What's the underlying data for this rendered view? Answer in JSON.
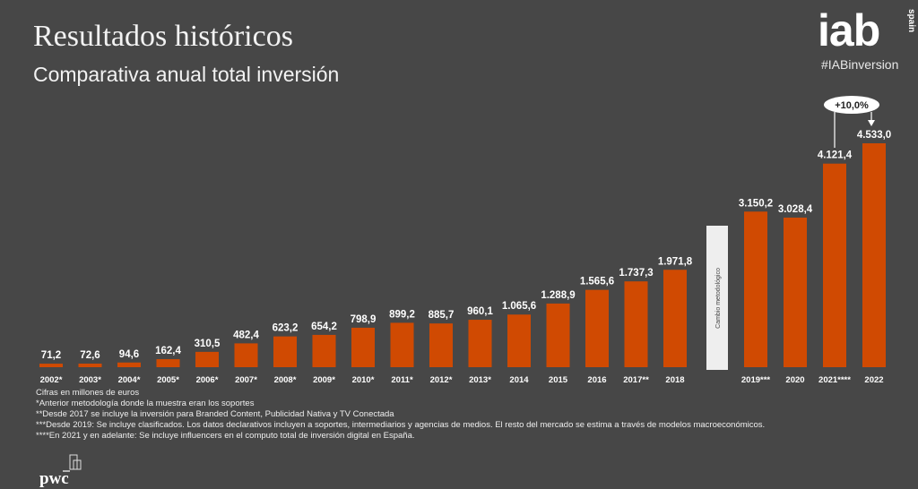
{
  "header": {
    "title": "Resultados históricos",
    "subtitle": "Comparativa anual total inversión",
    "logo": "iab",
    "logo_sub": "spain",
    "hashtag": "#IABinversion"
  },
  "colors": {
    "background": "#474747",
    "bar": "#d04a02",
    "separator": "#eeeeee"
  },
  "chart_data": {
    "type": "bar",
    "title": "",
    "xlabel": "",
    "ylabel": "",
    "categories": [
      "2002*",
      "2003*",
      "2004*",
      "2005*",
      "2006*",
      "2007*",
      "2008*",
      "2009*",
      "2010*",
      "2011*",
      "2012*",
      "2013*",
      "2014",
      "2015",
      "2016",
      "2017**",
      "2018",
      "2019***",
      "2020",
      "2021****",
      "2022"
    ],
    "values": [
      71.2,
      72.6,
      94.6,
      162.4,
      310.5,
      482.4,
      623.2,
      654.2,
      798.9,
      899.2,
      885.7,
      960.1,
      1065.6,
      1288.9,
      1565.6,
      1737.3,
      1971.8,
      3150.2,
      3028.4,
      4121.4,
      4533.0
    ],
    "value_format": "es",
    "grid": false,
    "legend": "none",
    "separator_label": "Cambio metodológico",
    "annotation": {
      "label": "+10,0%",
      "from": "2021****",
      "to": "2022"
    }
  },
  "footnotes": [
    "Cifras en millones de euros",
    "*Anterior metodología donde la muestra eran los soportes",
    "**Desde 2017 se incluye la inversión para Branded Content, Publicidad Nativa y TV Conectada",
    "***Desde 2019: Se incluye clasificados. Los datos declarativos incluyen a soportes, intermediarios y agencias de medios. El resto del mercado se estima a través de modelos macroeconómicos.",
    "****En  2021 y en adelante: Se incluye influencers en el computo total de inversión digital en España."
  ],
  "footer": {
    "brand": "pwc"
  }
}
